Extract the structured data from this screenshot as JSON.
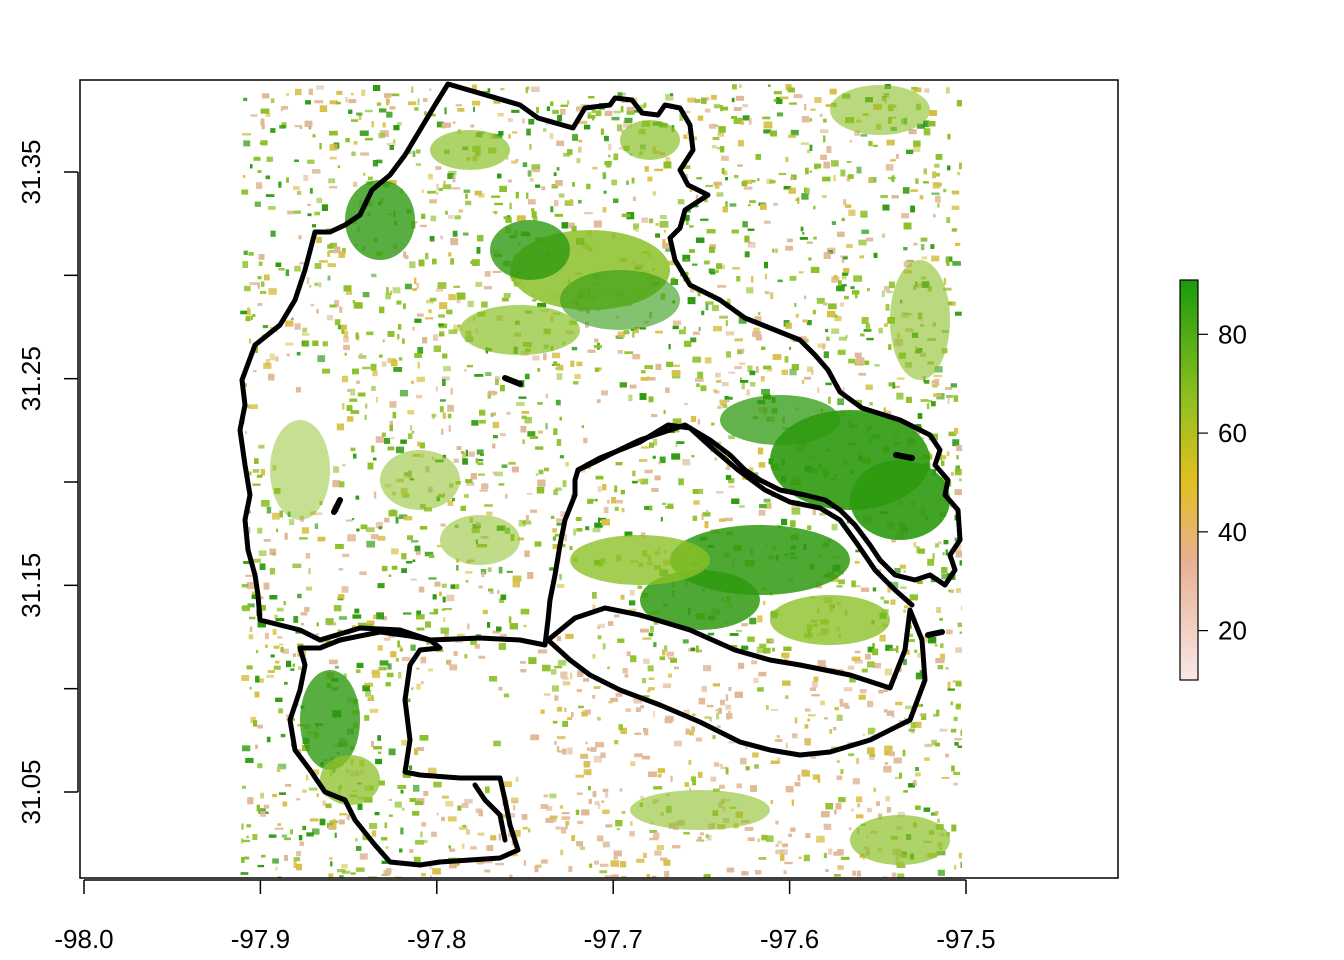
{
  "map": {
    "x_ticks": [
      "-98.0",
      "-97.9",
      "-97.8",
      "-97.7",
      "-97.6",
      "-97.5"
    ],
    "y_ticks": [
      "31.05",
      "31.15",
      "31.25",
      "31.35"
    ],
    "y_minor_ticks": [
      31.1,
      31.2,
      31.3
    ],
    "x_range": [
      -98.0,
      -97.5
    ],
    "y_range": [
      31.01,
      31.395
    ],
    "raster_extent": {
      "lon": [
        -97.91,
        -97.505
      ],
      "lat": [
        31.01,
        31.39
      ]
    },
    "legend": {
      "ticks": [
        "20",
        "40",
        "60",
        "80"
      ],
      "range": [
        10,
        91
      ],
      "colors": [
        "#f8e8e8",
        "#e8b090",
        "#e0c020",
        "#90c020",
        "#1a9a0a"
      ]
    },
    "colors": {
      "boundary": "#000000",
      "vegetation_high": "#2e9a10",
      "vegetation_mid": "#8cc028",
      "vegetation_low": "#d8c048",
      "sparse": "#e0b898"
    }
  }
}
